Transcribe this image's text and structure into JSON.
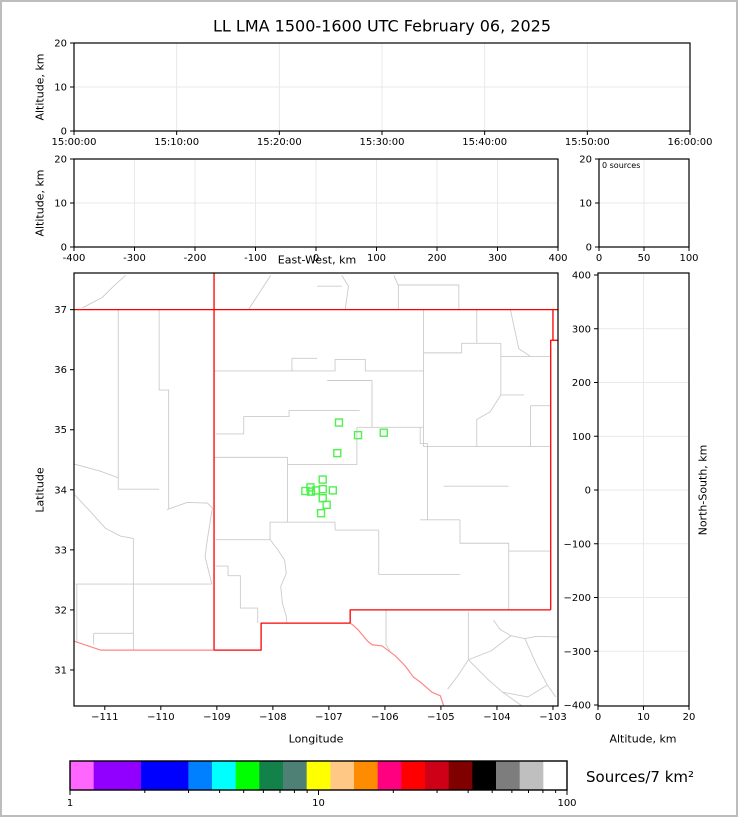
{
  "title": "LL LMA 1500-1600 UTC February 06, 2025",
  "panels": {
    "time_height": {
      "ylabel": "Altitude, km",
      "ylim": [
        0,
        20
      ],
      "yticks": [
        0,
        10,
        20
      ],
      "xtick_labels": [
        "15:00:00",
        "15:10:00",
        "15:20:00",
        "15:30:00",
        "15:40:00",
        "15:50:00",
        "16:00:00"
      ]
    },
    "ew_height": {
      "xlabel": "East-West, km",
      "ylabel": "Altitude, km",
      "xlim": [
        -400,
        400
      ],
      "xticks": [
        -400,
        -300,
        -200,
        -100,
        0,
        100,
        200,
        300,
        400
      ],
      "ylim": [
        0,
        20
      ],
      "yticks": [
        0,
        10,
        20
      ]
    },
    "alt_histogram": {
      "annotation": "0 sources",
      "xlim": [
        0,
        100
      ],
      "xticks": [
        0,
        50,
        100
      ],
      "ylim": [
        0,
        20
      ],
      "yticks": [
        0,
        10,
        20
      ]
    },
    "map": {
      "xlabel": "Longitude",
      "ylabel": "Latitude",
      "lon_lim": [
        -111.55,
        -102.91
      ],
      "lat_lim": [
        30.4,
        37.61
      ],
      "xticks": [
        -111,
        -110,
        -109,
        -108,
        -107,
        -106,
        -105,
        -104,
        -103
      ],
      "yticks": [
        31,
        32,
        33,
        34,
        35,
        36,
        37
      ]
    },
    "ns_height": {
      "xlabel": "Altitude, km",
      "ylabel": "North-South, km",
      "xlim": [
        0,
        20
      ],
      "xticks": [
        0,
        10,
        20
      ],
      "ylim": [
        -400,
        400
      ],
      "yticks": [
        -400,
        -300,
        -200,
        -100,
        0,
        100,
        200,
        300,
        400
      ]
    }
  },
  "colorbar": {
    "label": "Sources/7 km²",
    "scale": "log",
    "range": [
      1,
      100
    ],
    "tick_labels": [
      "1",
      "10",
      "100"
    ],
    "segments": [
      {
        "color": "#ff66ff",
        "units": 1
      },
      {
        "color": "#9100ff",
        "units": 2
      },
      {
        "color": "#0000ff",
        "units": 2
      },
      {
        "color": "#007fff",
        "units": 1
      },
      {
        "color": "#00ffff",
        "units": 1
      },
      {
        "color": "#00ff00",
        "units": 1
      },
      {
        "color": "#12814a",
        "units": 1
      },
      {
        "color": "#4f8076",
        "units": 1
      },
      {
        "color": "#ffff00",
        "units": 1
      },
      {
        "color": "#ffc985",
        "units": 1
      },
      {
        "color": "#ff8c00",
        "units": 1
      },
      {
        "color": "#ff0080",
        "units": 1
      },
      {
        "color": "#fe0000",
        "units": 1
      },
      {
        "color": "#ce0018",
        "units": 1
      },
      {
        "color": "#800000",
        "units": 1
      },
      {
        "color": "#000000",
        "units": 1
      },
      {
        "color": "#7d7d7d",
        "units": 1
      },
      {
        "color": "#bfbfbf",
        "units": 1
      },
      {
        "color": "#ffffff",
        "units": 1
      }
    ]
  },
  "chart_data": {
    "type": "scatter",
    "description": "LMA real-time display: no lightning sources in period (0 sources); green open squares are LMA station locations on New Mexico map with state (red) and county (gray) borders.",
    "source_count": 0,
    "station_marker": "open-square",
    "station_color": "#4ef14e",
    "state_border_color": "#fa0000",
    "intl_border_color": "#ff8585",
    "county_color": "#cbcbcb",
    "stations_lonlat": [
      [
        -106.82,
        35.12
      ],
      [
        -106.48,
        34.91
      ],
      [
        -106.02,
        34.95
      ],
      [
        -106.85,
        34.61
      ],
      [
        -107.11,
        34.17
      ],
      [
        -107.33,
        34.04
      ],
      [
        -107.42,
        33.98
      ],
      [
        -107.32,
        33.97
      ],
      [
        -107.23,
        33.99
      ],
      [
        -107.11,
        34.01
      ],
      [
        -106.93,
        33.99
      ],
      [
        -107.11,
        33.86
      ],
      [
        -107.04,
        33.75
      ],
      [
        -107.14,
        33.61
      ]
    ],
    "state_borders": [
      [
        [
          -111.55,
          37.0
        ],
        [
          -102.91,
          37.0
        ]
      ],
      [
        [
          -109.05,
          37.61
        ],
        [
          -109.05,
          31.33
        ]
      ],
      [
        [
          -103.0,
          37.0
        ],
        [
          -103.0,
          36.49
        ],
        [
          -103.04,
          36.49
        ],
        [
          -103.04,
          32.0
        ]
      ],
      [
        [
          -103.0,
          36.49
        ],
        [
          -102.91,
          36.49
        ]
      ],
      [
        [
          -103.04,
          32.0
        ],
        [
          -106.62,
          32.0
        ],
        [
          -106.62,
          31.78
        ]
      ],
      [
        [
          -106.62,
          31.78
        ],
        [
          -108.21,
          31.78
        ],
        [
          -108.21,
          31.33
        ],
        [
          -109.05,
          31.33
        ]
      ]
    ],
    "intl_borders": [
      [
        [
          -109.05,
          31.33
        ],
        [
          -111.07,
          31.33
        ],
        [
          -111.55,
          31.48
        ]
      ],
      [
        [
          -106.62,
          31.78
        ],
        [
          -106.56,
          31.74
        ],
        [
          -106.47,
          31.66
        ],
        [
          -106.32,
          31.49
        ],
        [
          -106.23,
          31.42
        ],
        [
          -106.05,
          31.4
        ],
        [
          -105.82,
          31.24
        ],
        [
          -105.64,
          31.07
        ],
        [
          -105.49,
          30.88
        ],
        [
          -105.37,
          30.8
        ],
        [
          -105.16,
          30.63
        ],
        [
          -105.01,
          30.57
        ],
        [
          -104.95,
          30.4
        ]
      ]
    ],
    "county_lines": [
      [
        [
          -111.4,
          37.03
        ],
        [
          -111.05,
          37.2
        ],
        [
          -110.81,
          37.42
        ],
        [
          -110.63,
          37.57
        ]
      ],
      [
        [
          -108.43,
          37.01
        ],
        [
          -108.22,
          37.31
        ],
        [
          -108.04,
          37.57
        ]
      ],
      [
        [
          -107.21,
          37.39
        ],
        [
          -106.77,
          37.39
        ]
      ],
      [
        [
          -106.77,
          37.57
        ],
        [
          -106.65,
          37.39
        ],
        [
          -106.71,
          37.0
        ]
      ],
      [
        [
          -105.84,
          37.57
        ],
        [
          -105.76,
          37.4
        ],
        [
          -105.76,
          37.0
        ]
      ],
      [
        [
          -105.76,
          37.41
        ],
        [
          -104.68,
          37.41
        ],
        [
          -104.68,
          37.0
        ]
      ],
      [
        [
          -110.76,
          37.0
        ],
        [
          -110.76,
          34.01
        ],
        [
          -110.03,
          34.01
        ]
      ],
      [
        [
          -110.03,
          37.0
        ],
        [
          -110.03,
          35.66
        ],
        [
          -109.86,
          35.66
        ],
        [
          -109.86,
          33.67
        ]
      ],
      [
        [
          -109.89,
          33.67
        ],
        [
          -109.53,
          33.79
        ],
        [
          -109.17,
          33.78
        ],
        [
          -109.08,
          33.7
        ],
        [
          -109.17,
          33.17
        ],
        [
          -109.21,
          32.89
        ],
        [
          -109.09,
          32.43
        ]
      ],
      [
        [
          -111.52,
          32.43
        ],
        [
          -109.09,
          32.43
        ]
      ],
      [
        [
          -111.55,
          34.43
        ],
        [
          -111.08,
          34.31
        ],
        [
          -110.76,
          34.2
        ]
      ],
      [
        [
          -111.55,
          33.93
        ],
        [
          -111.26,
          33.64
        ],
        [
          -110.99,
          33.36
        ],
        [
          -110.72,
          33.23
        ],
        [
          -110.49,
          33.19
        ],
        [
          -110.49,
          31.33
        ]
      ],
      [
        [
          -111.2,
          31.61
        ],
        [
          -110.49,
          31.61
        ]
      ],
      [
        [
          -111.2,
          31.61
        ],
        [
          -111.2,
          31.42
        ]
      ],
      [
        [
          -111.5,
          32.43
        ],
        [
          -111.5,
          31.46
        ]
      ],
      [
        [
          -109.05,
          35.98
        ],
        [
          -106.89,
          35.98
        ],
        [
          -106.89,
          36.17
        ],
        [
          -106.35,
          36.17
        ],
        [
          -106.35,
          35.98
        ],
        [
          -105.31,
          35.98
        ]
      ],
      [
        [
          -107.21,
          36.19
        ],
        [
          -107.66,
          36.19
        ],
        [
          -107.66,
          35.98
        ]
      ],
      [
        [
          -108.52,
          35.22
        ],
        [
          -107.71,
          35.22
        ],
        [
          -107.71,
          35.32
        ],
        [
          -106.45,
          35.32
        ]
      ],
      [
        [
          -109.02,
          34.93
        ],
        [
          -108.52,
          34.93
        ],
        [
          -108.52,
          35.22
        ]
      ],
      [
        [
          -109.05,
          34.54
        ],
        [
          -107.74,
          34.54
        ],
        [
          -107.74,
          34.42
        ],
        [
          -106.5,
          34.42
        ]
      ],
      [
        [
          -107.74,
          34.42
        ],
        [
          -107.74,
          33.46
        ],
        [
          -108.05,
          33.46
        ],
        [
          -108.05,
          33.17
        ],
        [
          -109.02,
          33.17
        ]
      ],
      [
        [
          -108.05,
          33.17
        ],
        [
          -107.91,
          33.0
        ],
        [
          -107.79,
          32.83
        ],
        [
          -107.76,
          32.61
        ],
        [
          -107.86,
          32.39
        ],
        [
          -107.83,
          32.11
        ],
        [
          -107.76,
          31.89
        ],
        [
          -107.75,
          31.78
        ]
      ],
      [
        [
          -109.02,
          32.73
        ],
        [
          -108.8,
          32.73
        ],
        [
          -108.8,
          32.57
        ],
        [
          -108.58,
          32.57
        ],
        [
          -108.58,
          32.03
        ],
        [
          -108.27,
          32.03
        ],
        [
          -108.27,
          31.78
        ]
      ],
      [
        [
          -107.03,
          35.82
        ],
        [
          -106.23,
          35.82
        ]
      ],
      [
        [
          -106.23,
          35.82
        ],
        [
          -106.23,
          35.04
        ]
      ],
      [
        [
          -106.5,
          35.04
        ],
        [
          -105.31,
          35.04
        ]
      ],
      [
        [
          -106.5,
          35.04
        ],
        [
          -106.5,
          34.42
        ]
      ],
      [
        [
          -105.31,
          37.0
        ],
        [
          -105.31,
          35.04
        ]
      ],
      [
        [
          -105.31,
          36.28
        ],
        [
          -104.63,
          36.28
        ],
        [
          -104.63,
          36.44
        ],
        [
          -103.93,
          36.44
        ]
      ],
      [
        [
          -103.93,
          36.44
        ],
        [
          -103.93,
          35.58
        ]
      ],
      [
        [
          -103.93,
          36.22
        ],
        [
          -103.04,
          36.22
        ]
      ],
      [
        [
          -103.52,
          35.58
        ],
        [
          -103.93,
          35.58
        ],
        [
          -104.12,
          35.3
        ],
        [
          -104.36,
          35.17
        ],
        [
          -104.36,
          34.72
        ]
      ],
      [
        [
          -105.31,
          34.72
        ],
        [
          -103.04,
          34.72
        ]
      ],
      [
        [
          -103.04,
          35.4
        ],
        [
          -103.4,
          35.4
        ],
        [
          -103.4,
          34.72
        ]
      ],
      [
        [
          -105.31,
          35.04
        ],
        [
          -105.31,
          34.72
        ]
      ],
      [
        [
          -104.95,
          34.06
        ],
        [
          -103.79,
          34.06
        ]
      ],
      [
        [
          -105.37,
          35.04
        ],
        [
          -105.37,
          34.77
        ],
        [
          -105.24,
          34.77
        ],
        [
          -105.24,
          33.5
        ]
      ],
      [
        [
          -105.37,
          33.5
        ],
        [
          -104.66,
          33.5
        ]
      ],
      [
        [
          -104.66,
          33.5
        ],
        [
          -104.66,
          33.11
        ],
        [
          -103.79,
          33.11
        ],
        [
          -103.79,
          32.0
        ]
      ],
      [
        [
          -103.79,
          32.98
        ],
        [
          -103.04,
          32.98
        ]
      ],
      [
        [
          -106.89,
          33.33
        ],
        [
          -106.11,
          33.33
        ]
      ],
      [
        [
          -106.11,
          33.33
        ],
        [
          -106.11,
          32.59
        ]
      ],
      [
        [
          -106.11,
          32.59
        ],
        [
          -104.66,
          32.59
        ]
      ],
      [
        [
          -107.74,
          33.46
        ],
        [
          -106.89,
          33.46
        ],
        [
          -106.89,
          33.33
        ]
      ],
      [
        [
          -104.06,
          31.83
        ],
        [
          -103.95,
          31.68
        ],
        [
          -103.75,
          31.57
        ],
        [
          -103.5,
          31.52
        ],
        [
          -103.3,
          31.56
        ],
        [
          -102.91,
          31.55
        ]
      ],
      [
        [
          -104.51,
          31.97
        ],
        [
          -104.51,
          31.17
        ]
      ],
      [
        [
          -104.51,
          31.17
        ],
        [
          -104.7,
          30.9
        ],
        [
          -104.88,
          30.68
        ]
      ],
      [
        [
          -104.51,
          31.17
        ],
        [
          -104.17,
          30.85
        ],
        [
          -103.9,
          30.63
        ],
        [
          -103.55,
          30.4
        ]
      ],
      [
        [
          -104.51,
          31.17
        ],
        [
          -104.1,
          31.32
        ],
        [
          -103.75,
          31.57
        ]
      ],
      [
        [
          -105.98,
          31.99
        ],
        [
          -105.98,
          31.42
        ],
        [
          -105.9,
          31.3
        ]
      ],
      [
        [
          -103.5,
          31.52
        ],
        [
          -103.3,
          31.1
        ],
        [
          -103.1,
          30.75
        ],
        [
          -102.95,
          30.55
        ]
      ],
      [
        [
          -103.9,
          30.63
        ],
        [
          -103.45,
          30.55
        ],
        [
          -103.1,
          30.75
        ]
      ],
      [
        [
          -103.76,
          37.0
        ],
        [
          -103.61,
          36.35
        ],
        [
          -103.4,
          36.22
        ]
      ],
      [
        [
          -104.36,
          37.0
        ],
        [
          -104.36,
          36.44
        ]
      ]
    ]
  }
}
